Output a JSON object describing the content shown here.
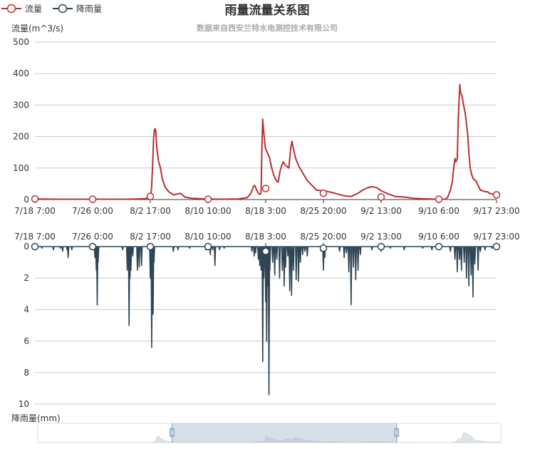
{
  "chart_data": {
    "type": "line",
    "title": "雨量流量关系图",
    "subtitle": "数据来自西安兰特水电测控技术有限公司",
    "legend": {
      "placement": "top-left",
      "items": [
        {
          "label": "流量",
          "color": "#b83034"
        },
        {
          "label": "降雨量",
          "color": "#2f4554"
        }
      ]
    },
    "x_categories": [
      "7/18 7:00",
      "7/26 0:00",
      "8/2 17:00",
      "8/10 10:00",
      "8/18 3:00",
      "8/25 20:00",
      "9/2 13:00",
      "9/10 6:00",
      "9/17 23:00"
    ],
    "top": {
      "ylabel": "流量(m^3/s)",
      "ylim": [
        0,
        500
      ],
      "yticks": [
        0,
        100,
        200,
        300,
        400,
        500
      ],
      "grid": true,
      "series": [
        {
          "name": "流量",
          "color": "#b83034",
          "points": [
            [
              0.0,
              2
            ],
            [
              0.05,
              1
            ],
            [
              0.1,
              1
            ],
            [
              0.15,
              1
            ],
            [
              0.2,
              1
            ],
            [
              0.225,
              2
            ],
            [
              0.24,
              3
            ],
            [
              0.245,
              6
            ],
            [
              0.25,
              10
            ],
            [
              0.2525,
              30
            ],
            [
              0.255,
              110
            ],
            [
              0.257,
              190
            ],
            [
              0.259,
              222
            ],
            [
              0.2605,
              225
            ],
            [
              0.262,
              215
            ],
            [
              0.264,
              165
            ],
            [
              0.268,
              120
            ],
            [
              0.272,
              100
            ],
            [
              0.276,
              65
            ],
            [
              0.282,
              40
            ],
            [
              0.29,
              25
            ],
            [
              0.3,
              15
            ],
            [
              0.31,
              18
            ],
            [
              0.315,
              20
            ],
            [
              0.325,
              8
            ],
            [
              0.34,
              4
            ],
            [
              0.37,
              2
            ],
            [
              0.4,
              1
            ],
            [
              0.44,
              2
            ],
            [
              0.46,
              6
            ],
            [
              0.468,
              20
            ],
            [
              0.473,
              40
            ],
            [
              0.476,
              45
            ],
            [
              0.479,
              35
            ],
            [
              0.484,
              20
            ],
            [
              0.488,
              16
            ],
            [
              0.49,
              25
            ],
            [
              0.4915,
              150
            ],
            [
              0.4935,
              255
            ],
            [
              0.496,
              210
            ],
            [
              0.499,
              165
            ],
            [
              0.503,
              150
            ],
            [
              0.508,
              135
            ],
            [
              0.513,
              100
            ],
            [
              0.518,
              75
            ],
            [
              0.523,
              60
            ],
            [
              0.527,
              55
            ],
            [
              0.531,
              90
            ],
            [
              0.535,
              110
            ],
            [
              0.538,
              120
            ],
            [
              0.542,
              110
            ],
            [
              0.546,
              105
            ],
            [
              0.55,
              100
            ],
            [
              0.552,
              130
            ],
            [
              0.5545,
              168
            ],
            [
              0.557,
              185
            ],
            [
              0.56,
              160
            ],
            [
              0.565,
              130
            ],
            [
              0.572,
              105
            ],
            [
              0.58,
              85
            ],
            [
              0.59,
              60
            ],
            [
              0.6,
              45
            ],
            [
              0.61,
              30
            ],
            [
              0.63,
              27
            ],
            [
              0.65,
              20
            ],
            [
              0.67,
              12
            ],
            [
              0.685,
              10
            ],
            [
              0.7,
              20
            ],
            [
              0.71,
              30
            ],
            [
              0.72,
              37
            ],
            [
              0.73,
              41
            ],
            [
              0.74,
              38
            ],
            [
              0.75,
              28
            ],
            [
              0.765,
              18
            ],
            [
              0.78,
              10
            ],
            [
              0.8,
              8
            ],
            [
              0.82,
              4
            ],
            [
              0.85,
              2
            ],
            [
              0.875,
              1
            ],
            [
              0.89,
              1
            ],
            [
              0.895,
              10
            ],
            [
              0.9,
              30
            ],
            [
              0.904,
              55
            ],
            [
              0.908,
              110
            ],
            [
              0.91,
              130
            ],
            [
              0.912,
              120
            ],
            [
              0.915,
              130
            ],
            [
              0.917,
              250
            ],
            [
              0.919,
              320
            ],
            [
              0.9205,
              365
            ],
            [
              0.922,
              340
            ],
            [
              0.925,
              330
            ],
            [
              0.928,
              305
            ],
            [
              0.932,
              275
            ],
            [
              0.935,
              240
            ],
            [
              0.938,
              200
            ],
            [
              0.94,
              150
            ],
            [
              0.943,
              100
            ],
            [
              0.946,
              80
            ],
            [
              0.95,
              65
            ],
            [
              0.955,
              60
            ],
            [
              0.96,
              45
            ],
            [
              0.965,
              30
            ],
            [
              0.97,
              28
            ],
            [
              0.975,
              25
            ],
            [
              0.98,
              25
            ],
            [
              0.985,
              20
            ],
            [
              0.99,
              18
            ],
            [
              1.0,
              15
            ]
          ],
          "markers": [
            [
              0.0,
              2
            ],
            [
              0.125,
              1
            ],
            [
              0.25,
              10
            ],
            [
              0.375,
              1
            ],
            [
              0.5,
              35
            ],
            [
              0.625,
              20
            ],
            [
              0.75,
              8
            ],
            [
              0.875,
              1
            ],
            [
              1.0,
              15
            ]
          ]
        }
      ]
    },
    "bottom": {
      "ylabel": "降雨量(mm)",
      "ylim": [
        0,
        10
      ],
      "yticks": [
        0,
        2,
        4,
        6,
        8,
        10
      ],
      "inverted": true,
      "grid": true,
      "series": [
        {
          "name": "降雨量",
          "color": "#2f4554",
          "spikes": [
            [
              0.015,
              0.1
            ],
            [
              0.04,
              0.2
            ],
            [
              0.055,
              0.1
            ],
            [
              0.06,
              0.3
            ],
            [
              0.07,
              0.2
            ],
            [
              0.072,
              0.7
            ],
            [
              0.08,
              0.2
            ],
            [
              0.13,
              0.7
            ],
            [
              0.133,
              1.5
            ],
            [
              0.135,
              3.7
            ],
            [
              0.137,
              1.0
            ],
            [
              0.19,
              0.2
            ],
            [
              0.2,
              1.5
            ],
            [
              0.204,
              5.0
            ],
            [
              0.206,
              2.0
            ],
            [
              0.208,
              1.5
            ],
            [
              0.212,
              0.6
            ],
            [
              0.222,
              1.5
            ],
            [
              0.226,
              1.3
            ],
            [
              0.231,
              1.2
            ],
            [
              0.25,
              2.0
            ],
            [
              0.253,
              6.4
            ],
            [
              0.256,
              4.3
            ],
            [
              0.258,
              1.0
            ],
            [
              0.3,
              0.3
            ],
            [
              0.31,
              0.2
            ],
            [
              0.335,
              0.1
            ],
            [
              0.37,
              0.2
            ],
            [
              0.38,
              0.5
            ],
            [
              0.385,
              0.2
            ],
            [
              0.39,
              1.2
            ],
            [
              0.4,
              0.2
            ],
            [
              0.41,
              0.1
            ],
            [
              0.47,
              0.3
            ],
            [
              0.475,
              0.6
            ],
            [
              0.478,
              0.4
            ],
            [
              0.484,
              0.8
            ],
            [
              0.487,
              1.2
            ],
            [
              0.49,
              1.5
            ],
            [
              0.4935,
              7.3
            ],
            [
              0.496,
              2.0
            ],
            [
              0.5,
              3.5
            ],
            [
              0.502,
              6.0
            ],
            [
              0.5035,
              1.5
            ],
            [
              0.505,
              2.5
            ],
            [
              0.507,
              9.4
            ],
            [
              0.509,
              1.5
            ],
            [
              0.515,
              1.0
            ],
            [
              0.5195,
              1.8
            ],
            [
              0.524,
              0.8
            ],
            [
              0.53,
              2.0
            ],
            [
              0.536,
              1.5
            ],
            [
              0.54,
              2.5
            ],
            [
              0.543,
              1.3
            ],
            [
              0.548,
              0.6
            ],
            [
              0.552,
              2.8
            ],
            [
              0.556,
              3.1
            ],
            [
              0.56,
              1.5
            ],
            [
              0.566,
              2.1
            ],
            [
              0.571,
              2.2
            ],
            [
              0.575,
              1.0
            ],
            [
              0.58,
              0.5
            ],
            [
              0.585,
              0.3
            ],
            [
              0.59,
              0.6
            ],
            [
              0.62,
              0.3
            ],
            [
              0.625,
              1.5
            ],
            [
              0.628,
              0.7
            ],
            [
              0.66,
              0.3
            ],
            [
              0.67,
              0.7
            ],
            [
              0.675,
              0.4
            ],
            [
              0.68,
              1.6
            ],
            [
              0.685,
              3.7
            ],
            [
              0.69,
              1.3
            ],
            [
              0.695,
              2.1
            ],
            [
              0.7,
              1.5
            ],
            [
              0.705,
              0.5
            ],
            [
              0.73,
              0.2
            ],
            [
              0.75,
              0.3
            ],
            [
              0.77,
              0.1
            ],
            [
              0.8,
              0.2
            ],
            [
              0.84,
              0.1
            ],
            [
              0.86,
              0.2
            ],
            [
              0.87,
              0.1
            ],
            [
              0.9,
              0.3
            ],
            [
              0.91,
              0.8
            ],
            [
              0.915,
              1.6
            ],
            [
              0.92,
              0.8
            ],
            [
              0.924,
              1.5
            ],
            [
              0.93,
              1.0
            ],
            [
              0.935,
              2.0
            ],
            [
              0.94,
              2.5
            ],
            [
              0.945,
              1.8
            ],
            [
              0.949,
              3.2
            ],
            [
              0.953,
              1.1
            ],
            [
              0.96,
              1.5
            ],
            [
              0.965,
              0.3
            ],
            [
              0.975,
              0.2
            ],
            [
              0.99,
              0.1
            ]
          ],
          "markers": [
            [
              0.0,
              0
            ],
            [
              0.125,
              0
            ],
            [
              0.25,
              0
            ],
            [
              0.375,
              0
            ],
            [
              0.5,
              0.3
            ],
            [
              0.625,
              0.1
            ],
            [
              0.75,
              0
            ],
            [
              0.875,
              0
            ],
            [
              1.0,
              0
            ]
          ]
        }
      ]
    },
    "zoom": {
      "start": 0.29,
      "end": 0.775
    }
  }
}
